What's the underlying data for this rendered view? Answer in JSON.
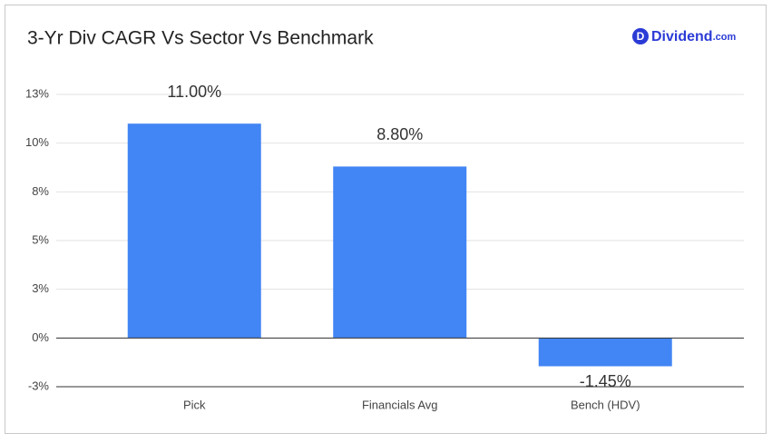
{
  "chart_data": {
    "type": "bar",
    "title": "3-Yr Div CAGR Vs Sector Vs Benchmark",
    "logo": {
      "icon": "D",
      "name": "Dividend",
      "suffix": ".com"
    },
    "categories": [
      "Pick",
      "Financials Avg",
      "Bench (HDV)"
    ],
    "values": [
      11.0,
      8.8,
      -1.45
    ],
    "value_labels": [
      "11.00%",
      "8.80%",
      "-1.45%"
    ],
    "color": "#4285f4",
    "ylim": [
      -2.5,
      12.5
    ],
    "yticks": [
      {
        "value": -2.5,
        "label": "-3%"
      },
      {
        "value": 0,
        "label": "0%"
      },
      {
        "value": 2.5,
        "label": "3%"
      },
      {
        "value": 5,
        "label": "5%"
      },
      {
        "value": 7.5,
        "label": "8%"
      },
      {
        "value": 10,
        "label": "10%"
      },
      {
        "value": 12.5,
        "label": "13%"
      }
    ],
    "grid": true
  }
}
